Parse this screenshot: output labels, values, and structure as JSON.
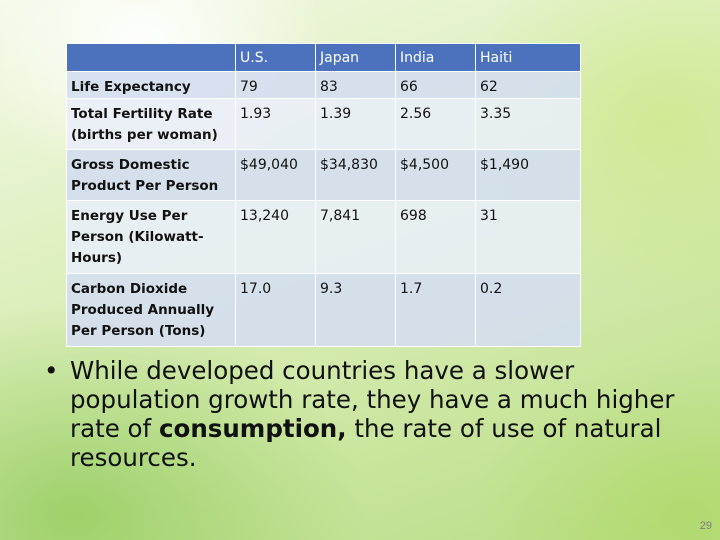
{
  "table": {
    "header": [
      "",
      "U.S.",
      "Japan",
      "India",
      "Haiti"
    ],
    "rows": [
      {
        "label": "Life Expectancy",
        "values": [
          "79",
          "83",
          "66",
          "62"
        ]
      },
      {
        "label": "Total Fertility Rate (births per woman)",
        "values": [
          "1.93",
          "1.39",
          "2.56",
          "3.35"
        ]
      },
      {
        "label": "Gross Domestic Product Per Person",
        "values": [
          "$49,040",
          "$34,830",
          "$4,500",
          "$1,490"
        ]
      },
      {
        "label": "Energy Use Per Person (Kilowatt-Hours)",
        "values": [
          "13,240",
          "7,841",
          "698",
          "31"
        ]
      },
      {
        "label": "Carbon Dioxide Produced Annually Per Person (Tons)",
        "values": [
          "17.0",
          "9.3",
          "1.7",
          "0.2"
        ]
      }
    ]
  },
  "bullet": {
    "symbol": "•",
    "text_before": "While developed countries have a slower population growth rate, they have a much higher rate of ",
    "emphasis": "consumption,",
    "text_after": " the rate of use of natural resources."
  },
  "page_number": "29"
}
